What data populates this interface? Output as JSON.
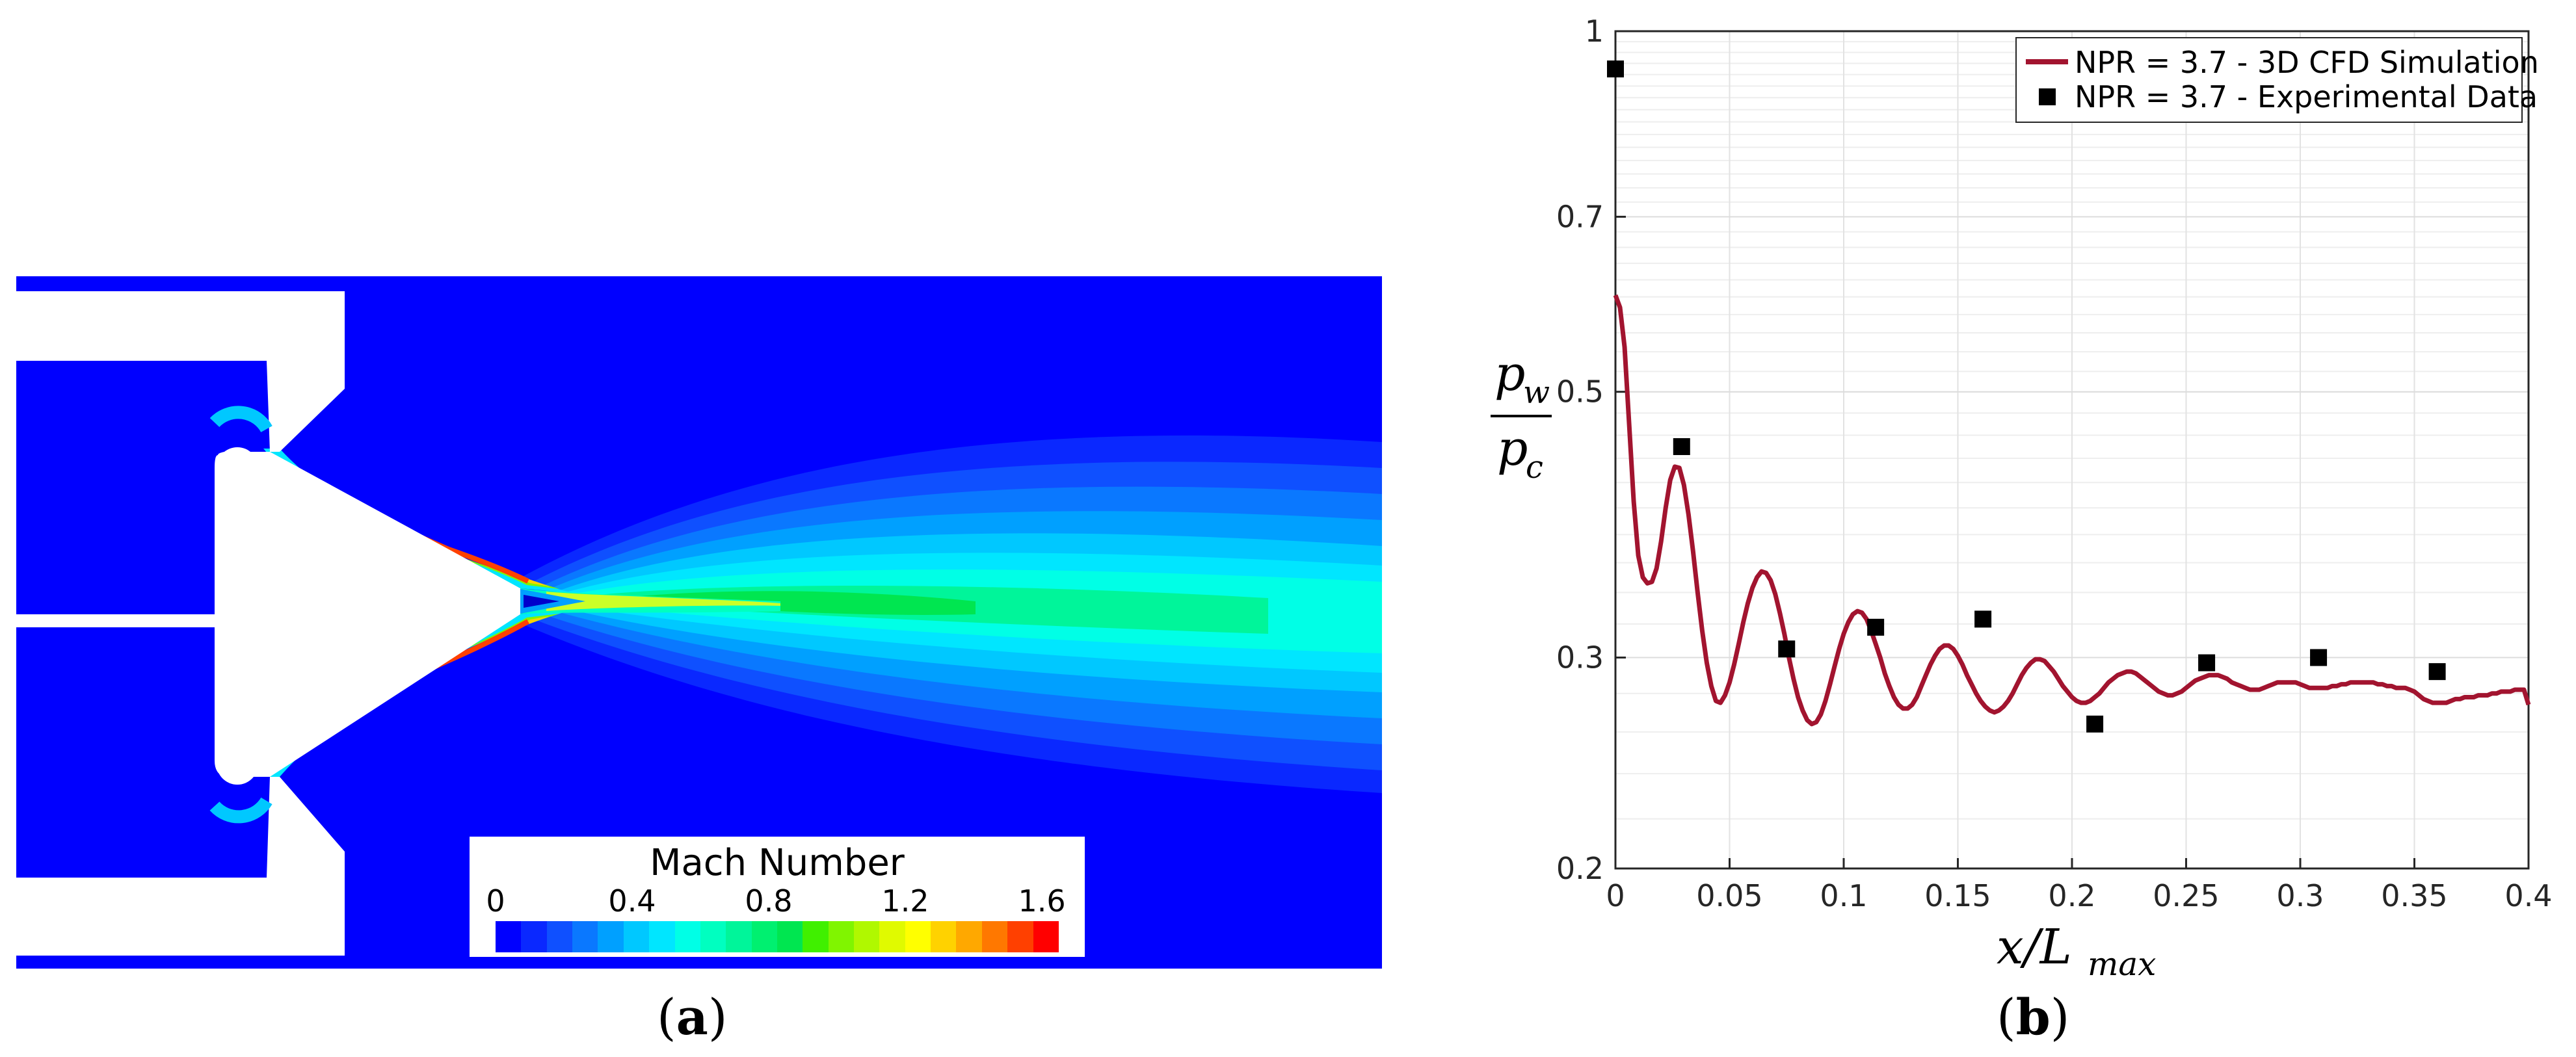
{
  "panel_a": {
    "caption": "(a)",
    "colorbar": {
      "title": "Mach Number",
      "tick_labels": [
        "0",
        "0.4",
        "0.8",
        "1.2",
        "1.6"
      ],
      "range": [
        0,
        1.6
      ],
      "levels": 22,
      "colors": [
        "#0000ff",
        "#0a28ff",
        "#0f50ff",
        "#0a78ff",
        "#00a0ff",
        "#00c8ff",
        "#00e6ff",
        "#00ffe6",
        "#00ffc0",
        "#00f59a",
        "#00f070",
        "#00e650",
        "#40f000",
        "#80f500",
        "#b0f800",
        "#e0fa00",
        "#ffff00",
        "#ffd200",
        "#ffa800",
        "#ff7800",
        "#ff4000",
        "#ff0000"
      ]
    }
  },
  "panel_b": {
    "caption": "(b)",
    "legend": [
      "NPR = 3.7 - 3D CFD Simulation",
      "NPR = 3.7 - Experimental Data"
    ],
    "legend_position": "top-right",
    "colors": {
      "cfd": "#a2142f",
      "exp": "#000000"
    }
  },
  "chart_data": {
    "type": "line",
    "xlabel": "x/L_max",
    "ylabel": "p_w / p_c",
    "xlim": [
      0,
      0.4
    ],
    "ylim": [
      0.2,
      1
    ],
    "yscale": "log",
    "grid": true,
    "xticks": [
      "0",
      "0.05",
      "0.1",
      "0.15",
      "0.2",
      "0.25",
      "0.3",
      "0.35",
      "0.4"
    ],
    "yticks": [
      "0.2",
      "0.3",
      "0.5",
      "0.7",
      "1"
    ],
    "series": [
      {
        "name": "NPR = 3.7 - 3D CFD Simulation",
        "kind": "line",
        "x": [
          0,
          0.002,
          0.004,
          0.006,
          0.008,
          0.01,
          0.012,
          0.014,
          0.016,
          0.018,
          0.02,
          0.022,
          0.024,
          0.026,
          0.028,
          0.03,
          0.032,
          0.034,
          0.036,
          0.038,
          0.04,
          0.042,
          0.044,
          0.046,
          0.048,
          0.05,
          0.052,
          0.054,
          0.056,
          0.058,
          0.06,
          0.062,
          0.064,
          0.066,
          0.068,
          0.07,
          0.072,
          0.074,
          0.076,
          0.078,
          0.08,
          0.082,
          0.084,
          0.086,
          0.088,
          0.09,
          0.092,
          0.094,
          0.096,
          0.098,
          0.1,
          0.102,
          0.104,
          0.106,
          0.108,
          0.11,
          0.112,
          0.114,
          0.116,
          0.118,
          0.12,
          0.122,
          0.124,
          0.126,
          0.128,
          0.13,
          0.132,
          0.134,
          0.136,
          0.138,
          0.14,
          0.142,
          0.144,
          0.146,
          0.148,
          0.15,
          0.152,
          0.154,
          0.156,
          0.158,
          0.16,
          0.162,
          0.164,
          0.166,
          0.168,
          0.17,
          0.172,
          0.174,
          0.176,
          0.178,
          0.18,
          0.182,
          0.184,
          0.186,
          0.188,
          0.19,
          0.192,
          0.194,
          0.196,
          0.198,
          0.2,
          0.202,
          0.204,
          0.206,
          0.208,
          0.21,
          0.212,
          0.214,
          0.216,
          0.218,
          0.22,
          0.222,
          0.224,
          0.226,
          0.228,
          0.23,
          0.232,
          0.234,
          0.236,
          0.238,
          0.24,
          0.242,
          0.244,
          0.246,
          0.248,
          0.25,
          0.252,
          0.254,
          0.256,
          0.258,
          0.26,
          0.262,
          0.264,
          0.266,
          0.268,
          0.27,
          0.272,
          0.274,
          0.276,
          0.278,
          0.28,
          0.282,
          0.284,
          0.286,
          0.288,
          0.29,
          0.292,
          0.294,
          0.296,
          0.298,
          0.3,
          0.302,
          0.304,
          0.306,
          0.308,
          0.31,
          0.312,
          0.314,
          0.316,
          0.318,
          0.32,
          0.322,
          0.324,
          0.326,
          0.328,
          0.33,
          0.332,
          0.334,
          0.336,
          0.338,
          0.34,
          0.342,
          0.344,
          0.346,
          0.348,
          0.35,
          0.352,
          0.354,
          0.356,
          0.358,
          0.36,
          0.362,
          0.364,
          0.366,
          0.368,
          0.37,
          0.372,
          0.374,
          0.376,
          0.378,
          0.38,
          0.382,
          0.384,
          0.386,
          0.388,
          0.39,
          0.392,
          0.394,
          0.396,
          0.398,
          0.4
        ],
        "y": [
          0.602,
          0.588,
          0.545,
          0.47,
          0.405,
          0.365,
          0.35,
          0.346,
          0.347,
          0.356,
          0.375,
          0.4,
          0.422,
          0.433,
          0.432,
          0.418,
          0.395,
          0.368,
          0.34,
          0.316,
          0.297,
          0.284,
          0.276,
          0.275,
          0.279,
          0.286,
          0.296,
          0.308,
          0.321,
          0.333,
          0.343,
          0.35,
          0.354,
          0.353,
          0.348,
          0.339,
          0.327,
          0.314,
          0.3,
          0.288,
          0.278,
          0.271,
          0.266,
          0.264,
          0.265,
          0.269,
          0.276,
          0.285,
          0.295,
          0.305,
          0.314,
          0.321,
          0.326,
          0.328,
          0.327,
          0.323,
          0.316,
          0.308,
          0.3,
          0.291,
          0.284,
          0.278,
          0.274,
          0.272,
          0.272,
          0.274,
          0.278,
          0.284,
          0.29,
          0.296,
          0.301,
          0.305,
          0.307,
          0.307,
          0.305,
          0.301,
          0.296,
          0.29,
          0.285,
          0.28,
          0.276,
          0.273,
          0.271,
          0.27,
          0.271,
          0.273,
          0.276,
          0.28,
          0.285,
          0.29,
          0.294,
          0.297,
          0.299,
          0.299,
          0.298,
          0.295,
          0.292,
          0.288,
          0.284,
          0.281,
          0.278,
          0.276,
          0.275,
          0.275,
          0.276,
          0.278,
          0.28,
          0.283,
          0.286,
          0.288,
          0.29,
          0.291,
          0.292,
          0.292,
          0.291,
          0.289,
          0.287,
          0.285,
          0.283,
          0.281,
          0.28,
          0.279,
          0.279,
          0.28,
          0.281,
          0.283,
          0.285,
          0.287,
          0.288,
          0.289,
          0.29,
          0.29,
          0.29,
          0.289,
          0.288,
          0.286,
          0.285,
          0.284,
          0.283,
          0.282,
          0.282,
          0.282,
          0.283,
          0.284,
          0.285,
          0.286,
          0.286,
          0.286,
          0.286,
          0.286,
          0.285,
          0.284,
          0.283,
          0.283,
          0.283,
          0.283,
          0.283,
          0.284,
          0.284,
          0.285,
          0.285,
          0.286,
          0.286,
          0.286,
          0.286,
          0.286,
          0.286,
          0.285,
          0.285,
          0.284,
          0.284,
          0.283,
          0.283,
          0.283,
          0.282,
          0.281,
          0.279,
          0.277,
          0.276,
          0.275,
          0.275,
          0.275,
          0.275,
          0.276,
          0.277,
          0.277,
          0.278,
          0.278,
          0.278,
          0.279,
          0.279,
          0.279,
          0.28,
          0.28,
          0.281,
          0.281,
          0.281,
          0.282,
          0.282,
          0.282,
          0.274
        ]
      },
      {
        "name": "NPR = 3.7 - Experimental Data",
        "kind": "scatter",
        "x": [
          0.0,
          0.029,
          0.075,
          0.114,
          0.161,
          0.21,
          0.259,
          0.308,
          0.36
        ],
        "y": [
          0.93,
          0.45,
          0.305,
          0.318,
          0.323,
          0.264,
          0.297,
          0.3,
          0.292
        ]
      }
    ]
  }
}
